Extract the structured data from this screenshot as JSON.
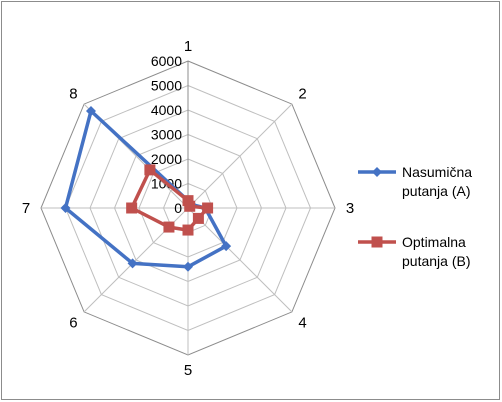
{
  "chart_data": {
    "type": "radar",
    "categories": [
      "1",
      "2",
      "3",
      "4",
      "5",
      "6",
      "7",
      "8"
    ],
    "series": [
      {
        "name": "Nasumična putanja (A)",
        "color": "#4472C4",
        "marker": "diamond",
        "values": [
          300,
          200,
          700,
          2200,
          2400,
          3200,
          5000,
          5600
        ]
      },
      {
        "name": "Optimalna putanja (B)",
        "color": "#C0504D",
        "marker": "square",
        "values": [
          300,
          100,
          800,
          600,
          900,
          1100,
          2300,
          2200
        ]
      }
    ],
    "r_ticks": [
      0,
      1000,
      2000,
      3000,
      4000,
      5000,
      6000
    ],
    "r_range": [
      0,
      6000
    ],
    "gridlines": true,
    "legend_position": "right",
    "legend": [
      {
        "line1": "Nasumična",
        "line2": "putanja (A)"
      },
      {
        "line1": "Optimalna",
        "line2": "putanja (B)"
      }
    ]
  }
}
